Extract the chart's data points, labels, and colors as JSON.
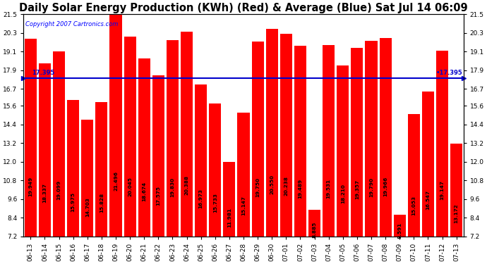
{
  "title": "Daily Solar Energy Production (KWh) (Red) & Average (Blue) Sat Jul 14 06:09",
  "copyright": "Copyright 2007 Cartronics.com",
  "average": 17.395,
  "bar_color": "#FF0000",
  "average_color": "#0000CC",
  "background_color": "#FFFFFF",
  "plot_bg_color": "#FFFFFF",
  "ylim_min": 7.2,
  "ylim_max": 21.5,
  "yticks": [
    7.2,
    8.4,
    9.6,
    10.8,
    12.0,
    13.2,
    14.4,
    15.6,
    16.7,
    17.9,
    19.1,
    20.3,
    21.5
  ],
  "categories": [
    "06-13",
    "06-14",
    "06-15",
    "06-16",
    "06-17",
    "06-18",
    "06-19",
    "06-20",
    "06-21",
    "06-22",
    "06-23",
    "06-24",
    "06-25",
    "06-26",
    "06-27",
    "06-28",
    "06-29",
    "06-30",
    "07-01",
    "07-02",
    "07-03",
    "07-04",
    "07-05",
    "07-06",
    "07-07",
    "07-08",
    "07-09",
    "07-10",
    "07-11",
    "07-12",
    "07-13"
  ],
  "values": [
    19.949,
    18.337,
    19.099,
    15.975,
    14.703,
    15.828,
    21.496,
    20.045,
    18.674,
    17.575,
    19.83,
    20.388,
    16.973,
    15.733,
    11.981,
    15.147,
    19.75,
    20.55,
    20.238,
    19.489,
    8.885,
    19.531,
    18.21,
    19.357,
    19.79,
    19.966,
    8.591,
    15.053,
    16.547,
    19.147,
    13.172
  ],
  "title_fontsize": 10.5,
  "tick_fontsize": 6.5,
  "value_label_fontsize": 5.2,
  "copyright_fontsize": 6.0
}
